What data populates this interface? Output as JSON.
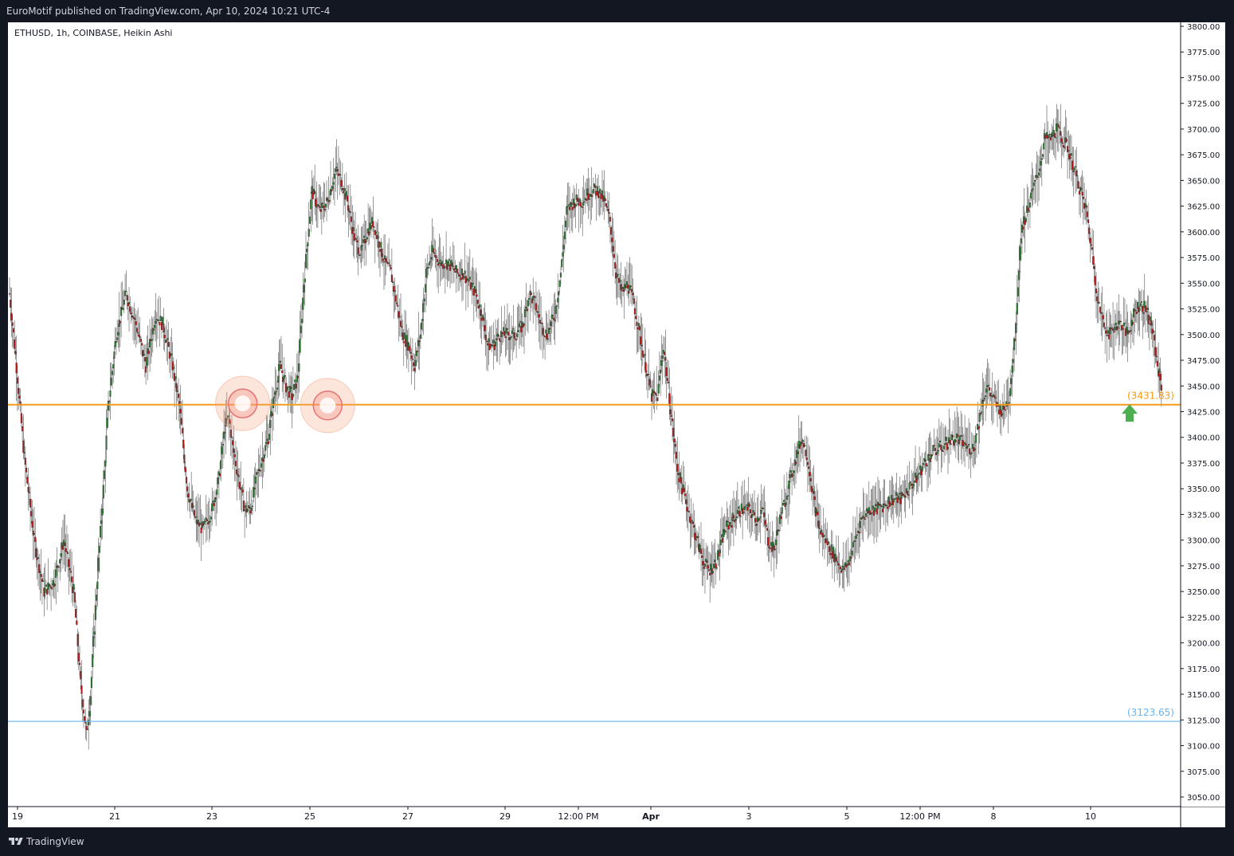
{
  "header": {
    "publish_text": "EuroMotif published on TradingView.com, Apr 10, 2024 10:21 UTC-4"
  },
  "chart": {
    "symbol_label": "ETHUSD, 1h, COINBASE, Heikin Ashi"
  },
  "footer": {
    "brand": "TradingView",
    "logo_icon": "tradingview-logo-icon"
  },
  "colors": {
    "up": "#26a69a",
    "down": "#ef5350",
    "candle_body_up": "#2e7d32",
    "candle_body_down": "#b71c1c",
    "support_line": "#f59c1a",
    "lower_line": "#64b5f6",
    "arrow": "#4caf50",
    "highlight_circle": "#f4a582"
  },
  "chart_data": {
    "type": "candlestick",
    "symbol": "ETHUSD",
    "timeframe": "1h",
    "exchange": "COINBASE",
    "style": "Heikin Ashi",
    "ylim": [
      3050,
      3800
    ],
    "y_ticks": [
      "3800.00",
      "3775.00",
      "3750.00",
      "3725.00",
      "3700.00",
      "3675.00",
      "3650.00",
      "3625.00",
      "3600.00",
      "3575.00",
      "3550.00",
      "3525.00",
      "3500.00",
      "3475.00",
      "3450.00",
      "3425.00",
      "3400.00",
      "3375.00",
      "3350.00",
      "3325.00",
      "3300.00",
      "3275.00",
      "3250.00",
      "3225.00",
      "3200.00",
      "3175.00",
      "3150.00",
      "3125.00",
      "3100.00",
      "3075.00",
      "3050.00"
    ],
    "x_ticks": [
      {
        "label": "19",
        "bold": false
      },
      {
        "label": "21",
        "bold": false
      },
      {
        "label": "23",
        "bold": false
      },
      {
        "label": "25",
        "bold": false
      },
      {
        "label": "27",
        "bold": false
      },
      {
        "label": "29",
        "bold": false
      },
      {
        "label": "12:00 PM",
        "bold": false
      },
      {
        "label": "Apr",
        "bold": true
      },
      {
        "label": "3",
        "bold": false
      },
      {
        "label": "5",
        "bold": false
      },
      {
        "label": "12:00 PM",
        "bold": false
      },
      {
        "label": "8",
        "bold": false
      },
      {
        "label": "10",
        "bold": false
      }
    ],
    "price_path": [
      [
        0,
        3540
      ],
      [
        6,
        3480
      ],
      [
        15,
        3380
      ],
      [
        25,
        3300
      ],
      [
        35,
        3250
      ],
      [
        45,
        3260
      ],
      [
        55,
        3300
      ],
      [
        65,
        3250
      ],
      [
        72,
        3160
      ],
      [
        78,
        3110
      ],
      [
        82,
        3150
      ],
      [
        88,
        3250
      ],
      [
        95,
        3350
      ],
      [
        100,
        3430
      ],
      [
        108,
        3500
      ],
      [
        118,
        3540
      ],
      [
        128,
        3510
      ],
      [
        138,
        3470
      ],
      [
        148,
        3520
      ],
      [
        155,
        3510
      ],
      [
        165,
        3470
      ],
      [
        172,
        3430
      ],
      [
        180,
        3350
      ],
      [
        188,
        3320
      ],
      [
        196,
        3310
      ],
      [
        205,
        3330
      ],
      [
        212,
        3360
      ],
      [
        218,
        3410
      ],
      [
        222,
        3420
      ],
      [
        226,
        3390
      ],
      [
        232,
        3360
      ],
      [
        238,
        3330
      ],
      [
        244,
        3330
      ],
      [
        250,
        3360
      ],
      [
        256,
        3380
      ],
      [
        262,
        3400
      ],
      [
        268,
        3440
      ],
      [
        274,
        3470
      ],
      [
        280,
        3450
      ],
      [
        286,
        3440
      ],
      [
        292,
        3460
      ],
      [
        298,
        3550
      ],
      [
        306,
        3640
      ],
      [
        314,
        3620
      ],
      [
        322,
        3630
      ],
      [
        330,
        3660
      ],
      [
        336,
        3650
      ],
      [
        342,
        3630
      ],
      [
        350,
        3590
      ],
      [
        356,
        3580
      ],
      [
        362,
        3600
      ],
      [
        368,
        3610
      ],
      [
        374,
        3590
      ],
      [
        380,
        3570
      ],
      [
        386,
        3560
      ],
      [
        392,
        3530
      ],
      [
        398,
        3500
      ],
      [
        404,
        3490
      ],
      [
        410,
        3470
      ],
      [
        416,
        3500
      ],
      [
        422,
        3560
      ],
      [
        428,
        3580
      ],
      [
        436,
        3570
      ],
      [
        444,
        3570
      ],
      [
        452,
        3560
      ],
      [
        460,
        3560
      ],
      [
        466,
        3550
      ],
      [
        472,
        3540
      ],
      [
        478,
        3520
      ],
      [
        484,
        3490
      ],
      [
        490,
        3490
      ],
      [
        496,
        3500
      ],
      [
        504,
        3500
      ],
      [
        512,
        3500
      ],
      [
        520,
        3510
      ],
      [
        526,
        3540
      ],
      [
        532,
        3530
      ],
      [
        538,
        3510
      ],
      [
        544,
        3500
      ],
      [
        552,
        3520
      ],
      [
        558,
        3560
      ],
      [
        564,
        3620
      ],
      [
        572,
        3630
      ],
      [
        580,
        3630
      ],
      [
        588,
        3640
      ],
      [
        596,
        3640
      ],
      [
        602,
        3630
      ],
      [
        608,
        3610
      ],
      [
        614,
        3560
      ],
      [
        620,
        3540
      ],
      [
        626,
        3550
      ],
      [
        632,
        3530
      ],
      [
        638,
        3500
      ],
      [
        644,
        3470
      ],
      [
        650,
        3440
      ],
      [
        656,
        3440
      ],
      [
        662,
        3490
      ],
      [
        670,
        3420
      ],
      [
        676,
        3370
      ],
      [
        684,
        3340
      ],
      [
        690,
        3320
      ],
      [
        696,
        3300
      ],
      [
        702,
        3280
      ],
      [
        708,
        3270
      ],
      [
        716,
        3280
      ],
      [
        724,
        3310
      ],
      [
        732,
        3320
      ],
      [
        740,
        3330
      ],
      [
        748,
        3330
      ],
      [
        756,
        3320
      ],
      [
        762,
        3330
      ],
      [
        768,
        3300
      ],
      [
        774,
        3290
      ],
      [
        780,
        3320
      ],
      [
        788,
        3350
      ],
      [
        796,
        3380
      ],
      [
        802,
        3400
      ],
      [
        808,
        3380
      ],
      [
        814,
        3340
      ],
      [
        820,
        3310
      ],
      [
        826,
        3300
      ],
      [
        832,
        3290
      ],
      [
        838,
        3280
      ],
      [
        844,
        3270
      ],
      [
        850,
        3280
      ],
      [
        856,
        3300
      ],
      [
        862,
        3320
      ],
      [
        870,
        3330
      ],
      [
        878,
        3330
      ],
      [
        886,
        3335
      ],
      [
        894,
        3340
      ],
      [
        902,
        3340
      ],
      [
        910,
        3350
      ],
      [
        918,
        3360
      ],
      [
        926,
        3375
      ],
      [
        934,
        3385
      ],
      [
        942,
        3390
      ],
      [
        950,
        3395
      ],
      [
        958,
        3400
      ],
      [
        964,
        3395
      ],
      [
        970,
        3390
      ],
      [
        976,
        3390
      ],
      [
        982,
        3420
      ],
      [
        986,
        3440
      ],
      [
        990,
        3450
      ],
      [
        994,
        3440
      ],
      [
        1000,
        3430
      ],
      [
        1006,
        3425
      ],
      [
        1012,
        3440
      ],
      [
        1018,
        3500
      ],
      [
        1024,
        3600
      ],
      [
        1030,
        3620
      ],
      [
        1036,
        3640
      ],
      [
        1042,
        3660
      ],
      [
        1048,
        3690
      ],
      [
        1054,
        3690
      ],
      [
        1060,
        3700
      ],
      [
        1066,
        3690
      ],
      [
        1072,
        3680
      ],
      [
        1078,
        3660
      ],
      [
        1084,
        3640
      ],
      [
        1090,
        3620
      ],
      [
        1096,
        3580
      ],
      [
        1102,
        3530
      ],
      [
        1108,
        3510
      ],
      [
        1114,
        3500
      ],
      [
        1120,
        3510
      ],
      [
        1126,
        3510
      ],
      [
        1132,
        3500
      ],
      [
        1138,
        3520
      ],
      [
        1144,
        3530
      ],
      [
        1150,
        3525
      ],
      [
        1156,
        3510
      ],
      [
        1162,
        3470
      ],
      [
        1166,
        3450
      ]
    ],
    "horizontal_levels": [
      {
        "label": "(3431.83)",
        "value": 3431.83,
        "color": "#f59c1a"
      },
      {
        "label": "(3123.65)",
        "value": 3123.65,
        "color": "#64b5f6"
      }
    ],
    "annotations": [
      {
        "type": "circle",
        "x_index": 236,
        "value": 3433
      },
      {
        "type": "circle",
        "x_index": 322,
        "value": 3431
      },
      {
        "type": "arrow_up",
        "x_index": 1170,
        "value": 3423
      }
    ]
  }
}
